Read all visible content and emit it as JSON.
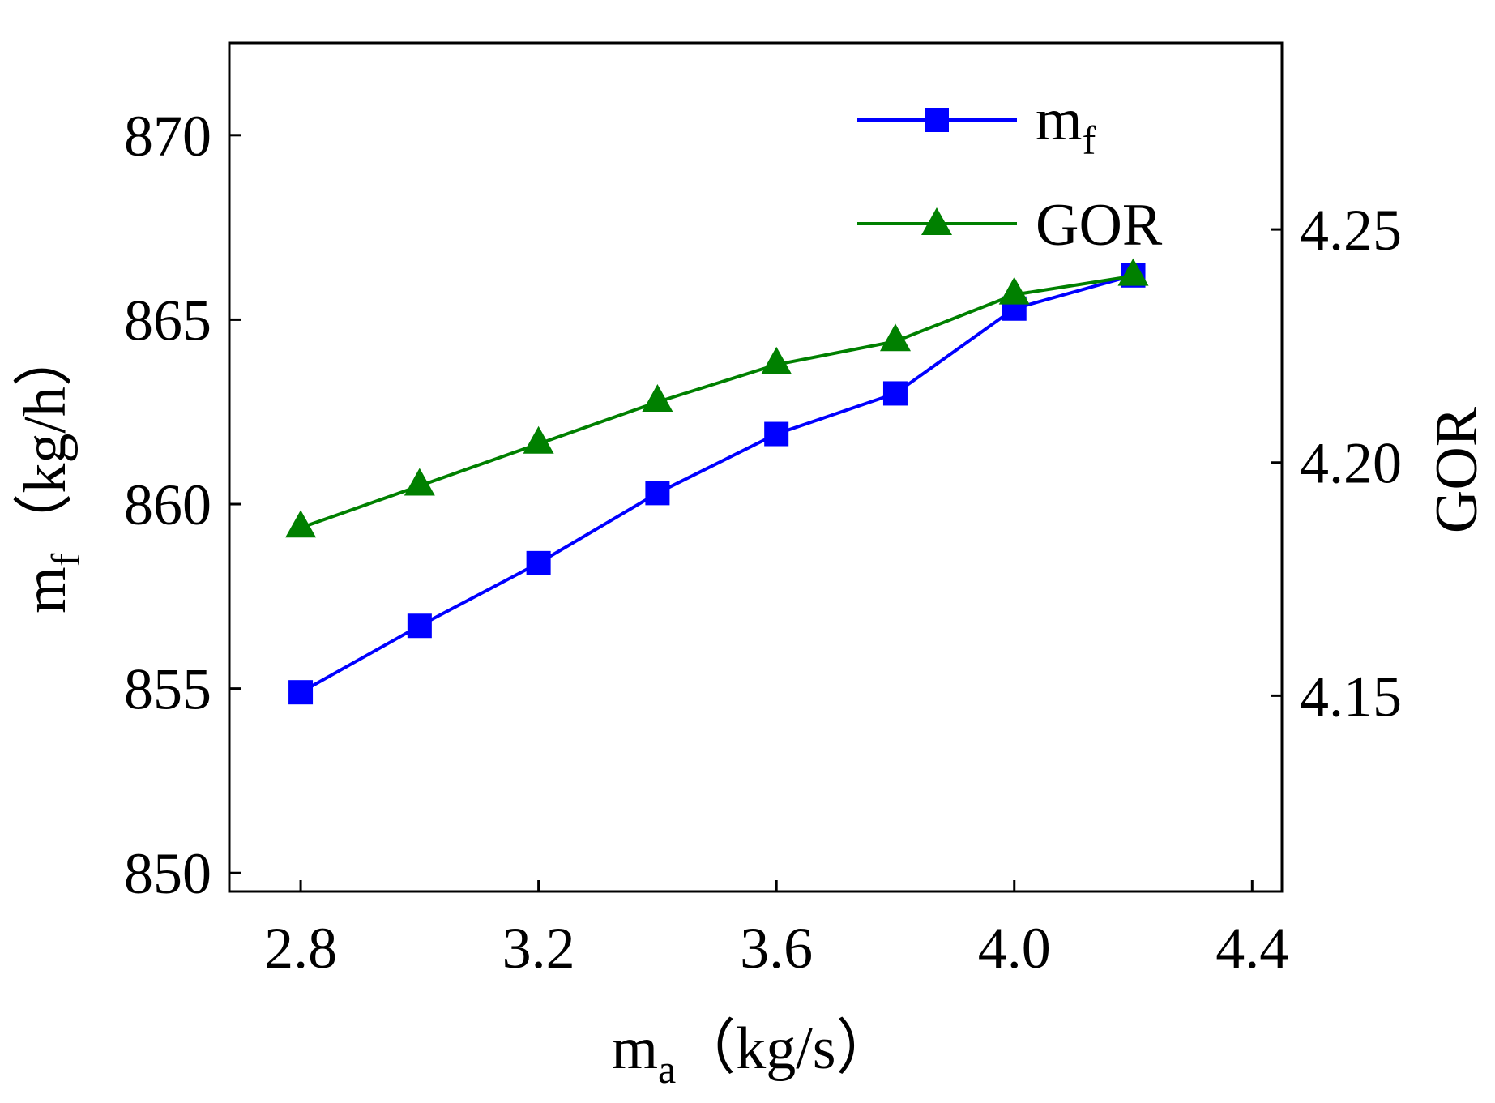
{
  "chart_data": {
    "type": "line",
    "title": "",
    "xlabel": {
      "main": "m",
      "sub": "a",
      "unit": "（kg/s）"
    },
    "ylabel_left": {
      "main": "m",
      "sub": "f",
      "unit": "（kg/h）"
    },
    "ylabel_right": "GOR",
    "x": [
      2.8,
      3.0,
      3.2,
      3.4,
      3.6,
      3.8,
      4.0,
      4.2
    ],
    "xlim": [
      2.68,
      4.45
    ],
    "x_ticks": [
      "2.8",
      "3.2",
      "3.6",
      "4.0",
      "4.4"
    ],
    "ylim_left": [
      849.5,
      872.5
    ],
    "y_ticks_left": [
      "850",
      "855",
      "860",
      "865",
      "870"
    ],
    "ylim_right": [
      4.108,
      4.29
    ],
    "y_ticks_right": [
      "4.15",
      "4.20",
      "4.25"
    ],
    "series": [
      {
        "name": "m_f",
        "axis": "left",
        "marker": "square",
        "color": "#0000ff",
        "values": [
          854.9,
          856.7,
          858.4,
          860.3,
          861.9,
          863.0,
          865.3,
          866.2
        ]
      },
      {
        "name": "GOR",
        "axis": "right",
        "marker": "triangle",
        "color": "#008000",
        "values": [
          4.186,
          4.195,
          4.204,
          4.213,
          4.221,
          4.226,
          4.236,
          4.24
        ]
      }
    ],
    "legend": {
      "position": "top-right",
      "items": [
        {
          "main": "m",
          "sub": "f"
        },
        {
          "main": "GOR",
          "sub": ""
        }
      ]
    },
    "grid": false
  }
}
